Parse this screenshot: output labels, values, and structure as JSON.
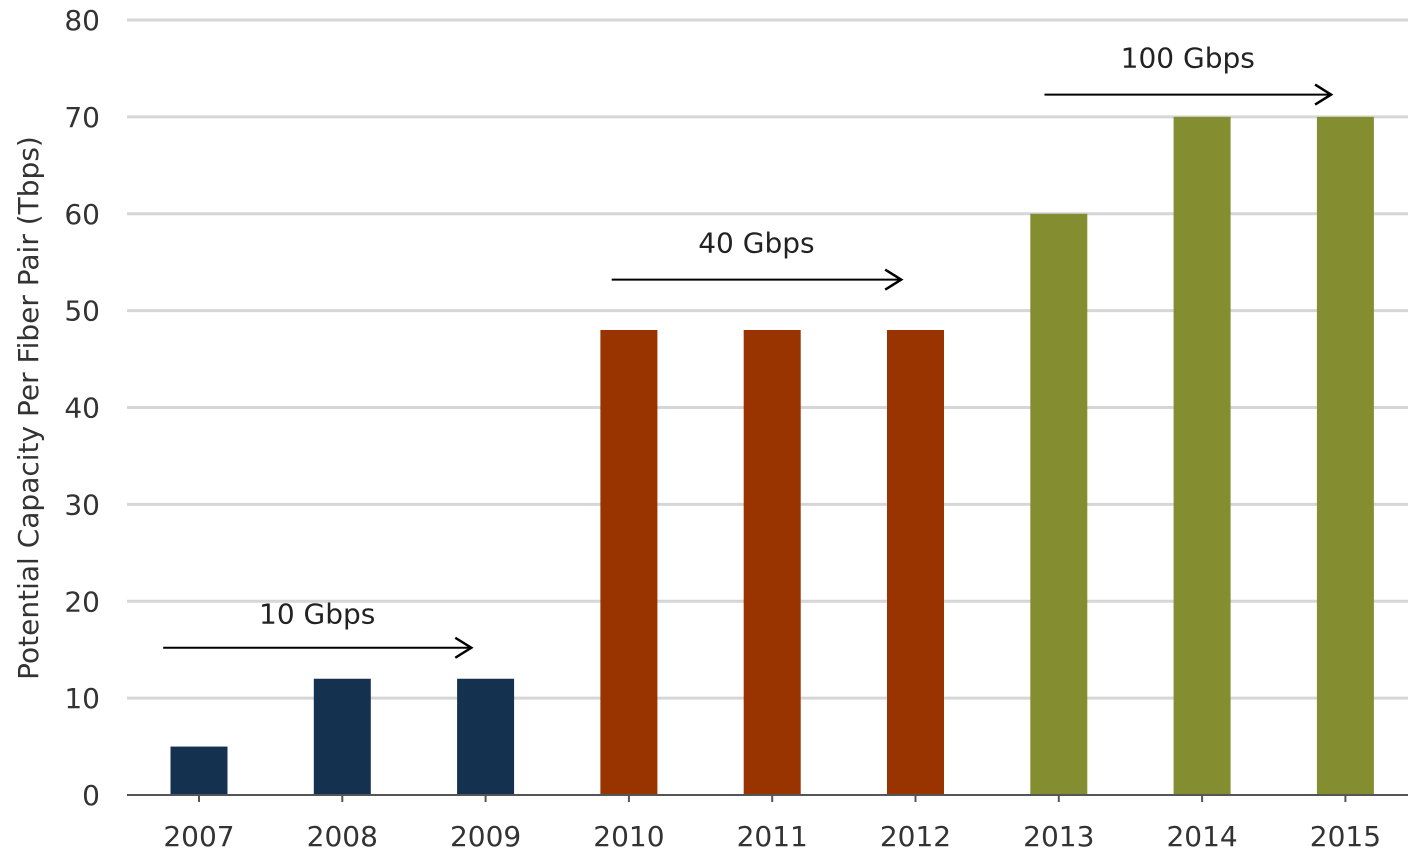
{
  "chart_data": {
    "type": "bar",
    "title": "",
    "xlabel": "",
    "ylabel": "Potential Capacity Per Fiber Pair (Tbps)",
    "ylim": [
      0,
      80
    ],
    "yticks": [
      0,
      10,
      20,
      30,
      40,
      50,
      60,
      70,
      80
    ],
    "grid": true,
    "legend": "none",
    "categories": [
      "2007",
      "2008",
      "2009",
      "2010",
      "2011",
      "2012",
      "2013",
      "2014",
      "2015"
    ],
    "values": [
      5,
      12,
      12,
      48,
      48,
      48,
      60,
      70,
      70
    ],
    "bar_colors": [
      "#14314f",
      "#14314f",
      "#14314f",
      "#993300",
      "#993300",
      "#993300",
      "#848e30",
      "#848e30",
      "#848e30"
    ],
    "annotations": [
      {
        "label": "10 Gbps",
        "from_category": "2007",
        "to_category": "2009",
        "y": 15.2,
        "label_y": 17.7,
        "start_offset": -0.25,
        "end_offset": -0.1
      },
      {
        "label": "40 Gbps",
        "from_category": "2010",
        "to_category": "2012",
        "y": 53.2,
        "label_y": 56.0,
        "start_offset": -0.12,
        "end_offset": -0.1
      },
      {
        "label": "100 Gbps",
        "from_category": "2013",
        "to_category": "2015",
        "y": 72.3,
        "label_y": 75.1,
        "start_offset": -0.1,
        "end_offset": -0.1
      }
    ],
    "colors": {
      "grid": "#d6d6d6",
      "axis": "#555555",
      "arrow": "#000000",
      "text": "#333333"
    }
  }
}
